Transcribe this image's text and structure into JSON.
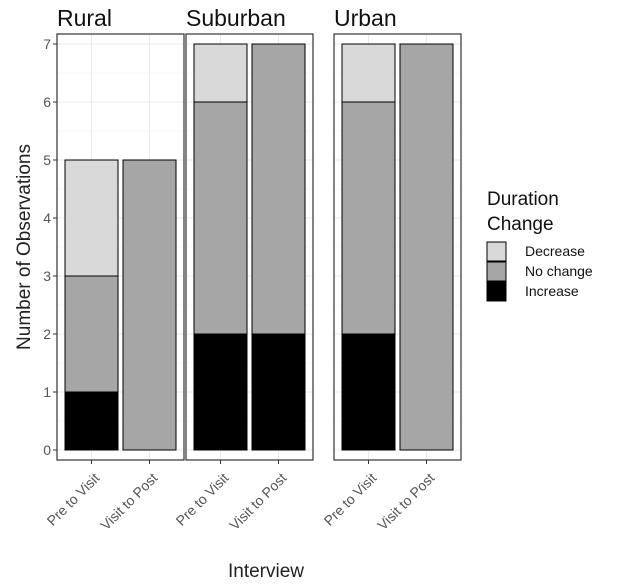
{
  "chart_data": {
    "type": "bar",
    "stacked": true,
    "facets": [
      "Rural",
      "Suburban",
      "Urban"
    ],
    "categories": [
      "Pre to Visit",
      "Visit to Post"
    ],
    "xlabel": "Interview",
    "ylabel": "Number of Observations",
    "ylim": [
      0,
      7
    ],
    "yticks": [
      0,
      1,
      2,
      3,
      4,
      5,
      6,
      7
    ],
    "grid": true,
    "legend": {
      "title_lines": [
        "Duration",
        "Change"
      ],
      "position": "right",
      "entries": [
        "Decrease",
        "No change",
        "Increase"
      ]
    },
    "series": [
      {
        "name": "Increase",
        "color": "#000000",
        "values": {
          "Rural": [
            1,
            0
          ],
          "Suburban": [
            2,
            2
          ],
          "Urban": [
            2,
            0
          ]
        }
      },
      {
        "name": "No change",
        "color": "#a6a6a6",
        "values": {
          "Rural": [
            2,
            5
          ],
          "Suburban": [
            4,
            5
          ],
          "Urban": [
            4,
            7
          ]
        }
      },
      {
        "name": "Decrease",
        "color": "#d9d9d9",
        "values": {
          "Rural": [
            2,
            0
          ],
          "Suburban": [
            1,
            0
          ],
          "Urban": [
            1,
            0
          ]
        }
      }
    ]
  }
}
